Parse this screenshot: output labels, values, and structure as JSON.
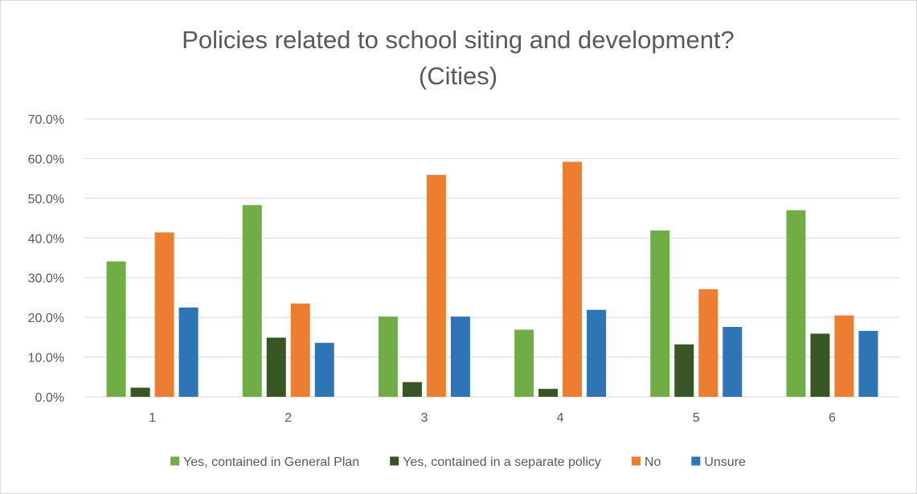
{
  "chart_data": {
    "type": "bar",
    "title_lines": [
      "Policies related to school siting and development?",
      "(Cities)"
    ],
    "categories": [
      "1",
      "2",
      "3",
      "4",
      "5",
      "6"
    ],
    "series": [
      {
        "name": "Yes, contained in General Plan",
        "color": "#70ad47",
        "values": [
          34.1,
          48.3,
          20.2,
          16.9,
          41.9,
          47.0
        ]
      },
      {
        "name": "Yes, contained in a separate policy",
        "color": "#375623",
        "values": [
          2.3,
          14.9,
          3.7,
          2.0,
          13.2,
          15.9
        ]
      },
      {
        "name": "No",
        "color": "#ed7d31",
        "values": [
          41.4,
          23.5,
          55.9,
          59.2,
          27.1,
          20.5
        ]
      },
      {
        "name": "Unsure",
        "color": "#2e75b6",
        "values": [
          22.5,
          13.6,
          20.2,
          21.9,
          17.6,
          16.6
        ]
      }
    ],
    "ylim": [
      0,
      70
    ],
    "yticks": [
      0,
      10,
      20,
      30,
      40,
      50,
      60,
      70
    ],
    "ytick_labels": [
      "0.0%",
      "10.0%",
      "20.0%",
      "30.0%",
      "40.0%",
      "50.0%",
      "60.0%",
      "70.0%"
    ],
    "grid": true,
    "legend_position": "bottom",
    "gridline_color": "#d9d9d9",
    "text_color": "#595959"
  }
}
